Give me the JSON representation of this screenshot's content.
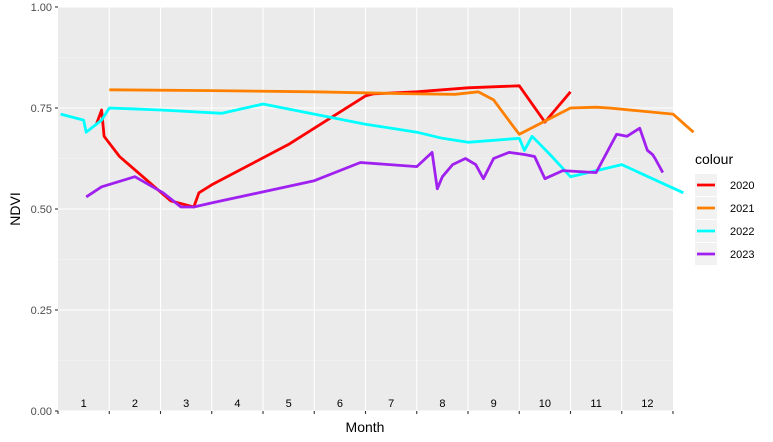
{
  "chart_data": {
    "type": "line",
    "xlabel": "Month",
    "ylabel": "NDVI",
    "ylim": [
      0,
      1
    ],
    "yticks": [
      "0.00",
      "0.25",
      "0.50",
      "0.75",
      "1.00"
    ],
    "month_labels": [
      "1",
      "2",
      "3",
      "4",
      "5",
      "6",
      "7",
      "8",
      "9",
      "10",
      "11",
      "12"
    ],
    "grid": true,
    "legend_title": "colour",
    "legend_position": "right",
    "x_range": [
      0,
      12
    ],
    "series": [
      {
        "name": "2020",
        "color": "#ff0000",
        "x": [
          0.75,
          0.85,
          0.9,
          1.2,
          2.2,
          2.65,
          2.75,
          3.0,
          4.5,
          6.0,
          6.15,
          7.0,
          8.0,
          9.0,
          9.5,
          10.0
        ],
        "y": [
          0.71,
          0.745,
          0.68,
          0.63,
          0.52,
          0.505,
          0.54,
          0.56,
          0.66,
          0.78,
          0.785,
          0.79,
          0.8,
          0.805,
          0.715,
          0.79
        ]
      },
      {
        "name": "2021",
        "color": "#ff8000",
        "x": [
          1.0,
          3.0,
          5.0,
          7.0,
          7.75,
          8.2,
          8.5,
          8.85,
          9.0,
          10.0,
          10.5,
          10.75,
          12.0,
          12.4
        ],
        "y": [
          0.795,
          0.793,
          0.79,
          0.785,
          0.784,
          0.79,
          0.77,
          0.71,
          0.685,
          0.75,
          0.752,
          0.75,
          0.735,
          0.69
        ]
      },
      {
        "name": "2022",
        "color": "#00ffff",
        "x": [
          0.05,
          0.5,
          0.55,
          0.85,
          1.0,
          2.0,
          3.2,
          4.0,
          6.0,
          7.0,
          7.5,
          8.0,
          8.5,
          9.0,
          9.1,
          9.25,
          9.6,
          10.0,
          11.0,
          12.2
        ],
        "y": [
          0.735,
          0.72,
          0.69,
          0.72,
          0.75,
          0.745,
          0.737,
          0.76,
          0.71,
          0.69,
          0.675,
          0.665,
          0.67,
          0.675,
          0.645,
          0.68,
          0.635,
          0.58,
          0.61,
          0.54
        ]
      },
      {
        "name": "2023",
        "color": "#a020f0",
        "x": [
          0.55,
          0.85,
          1.5,
          2.05,
          2.4,
          2.65,
          3.0,
          5.0,
          5.9,
          7.0,
          7.3,
          7.4,
          7.5,
          7.7,
          7.95,
          8.15,
          8.3,
          8.5,
          8.8,
          9.1,
          9.3,
          9.5,
          9.85,
          10.5,
          10.9,
          11.1,
          11.35,
          11.5,
          11.6,
          11.65,
          11.8
        ],
        "y": [
          0.53,
          0.555,
          0.58,
          0.54,
          0.505,
          0.505,
          0.515,
          0.57,
          0.615,
          0.605,
          0.64,
          0.55,
          0.58,
          0.61,
          0.625,
          0.61,
          0.575,
          0.625,
          0.64,
          0.635,
          0.63,
          0.575,
          0.595,
          0.59,
          0.685,
          0.68,
          0.7,
          0.645,
          0.635,
          0.625,
          0.59
        ]
      }
    ]
  }
}
